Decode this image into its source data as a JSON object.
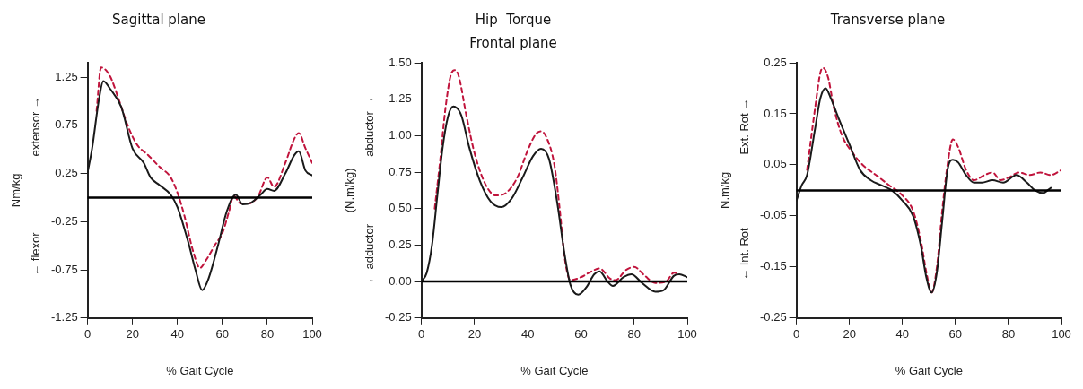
{
  "chart_data": [
    {
      "type": "line",
      "title": "Sagittal plane",
      "xlabel": "% Gait Cycle",
      "ylabel": "Nm/kg",
      "annotations": [
        "extensor →",
        "← flexor"
      ],
      "xlim": [
        0,
        100
      ],
      "xticks": [
        0,
        20,
        40,
        60,
        80,
        100
      ],
      "ylim": [
        -1.25,
        1.4
      ],
      "yticks": [
        -1.25,
        -0.75,
        -0.25,
        0.25,
        0.75,
        1.25
      ],
      "grid": false,
      "legend": false,
      "marker": "none",
      "ref_lines": [
        {
          "axis": "y",
          "value": 0,
          "color": "#000000"
        }
      ],
      "series": [
        {
          "color": "#1a1a1a",
          "line_style": "solid",
          "x": [
            0,
            2,
            5,
            7,
            10,
            15,
            20,
            25,
            28,
            32,
            37,
            40,
            45,
            48,
            51,
            54,
            58,
            62,
            66,
            69,
            73,
            77,
            80,
            83,
            88,
            92,
            94,
            97,
            100
          ],
          "values": [
            0.26,
            0.51,
            1.01,
            1.21,
            1.13,
            0.94,
            0.51,
            0.36,
            0.21,
            0.13,
            0.03,
            -0.1,
            -0.48,
            -0.75,
            -0.96,
            -0.83,
            -0.5,
            -0.14,
            0.03,
            -0.07,
            -0.05,
            0.03,
            0.09,
            0.07,
            0.25,
            0.44,
            0.48,
            0.28,
            0.23
          ]
        },
        {
          "color": "#c0143c",
          "line_style": "dashed",
          "x": [
            4,
            6,
            10,
            14,
            18,
            22,
            27,
            32,
            37,
            40,
            43,
            47,
            50,
            53,
            57,
            60,
            63,
            65,
            68,
            72,
            76,
            80,
            83,
            88,
            92,
            94,
            97,
            100
          ],
          "values": [
            0.9,
            1.35,
            1.26,
            1.01,
            0.74,
            0.55,
            0.44,
            0.32,
            0.21,
            0.05,
            -0.18,
            -0.56,
            -0.73,
            -0.64,
            -0.48,
            -0.37,
            -0.14,
            0.02,
            -0.06,
            -0.06,
            0.02,
            0.21,
            0.11,
            0.36,
            0.61,
            0.67,
            0.51,
            0.36
          ]
        }
      ]
    },
    {
      "type": "line",
      "title": "Hip  Torque",
      "subtitle": "Frontal plane",
      "xlabel": "% Gait Cycle",
      "ylabel": "(N.m/kg)",
      "annotations": [
        "abductor →",
        "← adductor"
      ],
      "xlim": [
        0,
        100
      ],
      "xticks": [
        0,
        20,
        40,
        60,
        80,
        100
      ],
      "ylim": [
        -0.25,
        1.5
      ],
      "yticks": [
        {
          "value": -0.25,
          "label": "-0.25"
        },
        {
          "value": 0,
          "label": "0.00"
        },
        {
          "value": 0.25,
          "label": "0.25"
        },
        {
          "value": 0.5,
          "label": "0.50"
        },
        {
          "value": 0.75,
          "label": "0.75"
        },
        {
          "value": 1,
          "label": "1.00"
        },
        {
          "value": 1.25,
          "label": "1.25"
        },
        {
          "value": 1.5,
          "label": "1.50"
        }
      ],
      "grid": false,
      "legend": false,
      "marker": "none",
      "ref_lines": [
        {
          "axis": "y",
          "value": 0,
          "color": "#000000"
        }
      ],
      "series": [
        {
          "color": "#1a1a1a",
          "line_style": "solid",
          "x": [
            0,
            2,
            4,
            6,
            8,
            10,
            12,
            15,
            18,
            22,
            26,
            30,
            34,
            38,
            42,
            45,
            48,
            51,
            54,
            56,
            59,
            62,
            65,
            67,
            70,
            72,
            76,
            79,
            83,
            88,
            91,
            95,
            97,
            100
          ],
          "values": [
            0,
            0.06,
            0.25,
            0.59,
            0.92,
            1.13,
            1.2,
            1.14,
            0.92,
            0.69,
            0.55,
            0.51,
            0.57,
            0.71,
            0.86,
            0.91,
            0.84,
            0.55,
            0.17,
            -0.02,
            -0.09,
            -0.04,
            0.05,
            0.07,
            0,
            -0.03,
            0.03,
            0.05,
            -0.01,
            -0.07,
            -0.06,
            0.04,
            0.05,
            0.03
          ]
        },
        {
          "color": "#c0143c",
          "line_style": "dashed",
          "x": [
            5,
            7,
            9,
            11,
            12.5,
            14,
            17,
            20,
            24,
            28,
            32,
            36,
            40,
            43,
            45,
            47,
            50,
            52,
            54,
            56,
            60,
            64,
            67,
            71,
            73,
            77,
            80,
            84,
            88,
            92,
            95,
            97
          ],
          "values": [
            0.5,
            0.82,
            1.18,
            1.41,
            1.45,
            1.41,
            1.13,
            0.88,
            0.67,
            0.59,
            0.61,
            0.71,
            0.9,
            1.01,
            1.03,
            0.99,
            0.8,
            0.5,
            0.15,
            0.01,
            0.03,
            0.07,
            0.09,
            0.02,
            0.01,
            0.08,
            0.1,
            0.04,
            -0.01,
            0,
            0.06,
            0.05
          ]
        }
      ]
    },
    {
      "type": "line",
      "title": "Transverse plane",
      "xlabel": "% Gait Cycle",
      "ylabel": "N.m/kg",
      "annotations": [
        "Ext. Rot →",
        "← Int. Rot"
      ],
      "xlim": [
        0,
        100
      ],
      "xticks": [
        0,
        20,
        40,
        60,
        80,
        100
      ],
      "ylim": [
        -0.25,
        0.25
      ],
      "yticks": [
        -0.25,
        -0.15,
        -0.05,
        0.05,
        0.15,
        0.25
      ],
      "grid": false,
      "legend": false,
      "marker": "none",
      "ref_lines": [
        {
          "axis": "y",
          "value": 0,
          "color": "#000000"
        }
      ],
      "series": [
        {
          "color": "#1a1a1a",
          "line_style": "solid",
          "x": [
            0,
            2,
            4,
            7,
            9,
            11,
            13,
            16,
            20,
            24,
            28,
            32,
            36,
            40,
            44,
            47,
            49,
            51,
            53,
            55,
            57,
            59,
            61,
            64,
            67,
            70,
            74,
            78,
            83,
            87,
            90,
            93,
            96
          ],
          "values": [
            -0.02,
            0.01,
            0.03,
            0.12,
            0.18,
            0.2,
            0.18,
            0.14,
            0.09,
            0.04,
            0.02,
            0.01,
            0,
            -0.02,
            -0.05,
            -0.11,
            -0.17,
            -0.2,
            -0.16,
            -0.06,
            0.04,
            0.06,
            0.055,
            0.03,
            0.015,
            0.015,
            0.02,
            0.015,
            0.03,
            0.015,
            0,
            -0.005,
            0.005
          ]
        },
        {
          "color": "#c0143c",
          "line_style": "dashed",
          "x": [
            4,
            7,
            9,
            10,
            12,
            14,
            17,
            21,
            25,
            30,
            35,
            40,
            44,
            47,
            49,
            51,
            53,
            55,
            57,
            59,
            61,
            64,
            67,
            71,
            74,
            77,
            80,
            84,
            88,
            92,
            96,
            100
          ],
          "values": [
            0.04,
            0.16,
            0.23,
            0.24,
            0.22,
            0.165,
            0.11,
            0.075,
            0.05,
            0.03,
            0.01,
            -0.01,
            -0.04,
            -0.1,
            -0.16,
            -0.2,
            -0.15,
            -0.04,
            0.05,
            0.1,
            0.085,
            0.04,
            0.02,
            0.03,
            0.035,
            0.02,
            0.025,
            0.035,
            0.03,
            0.035,
            0.03,
            0.04
          ]
        }
      ]
    }
  ]
}
